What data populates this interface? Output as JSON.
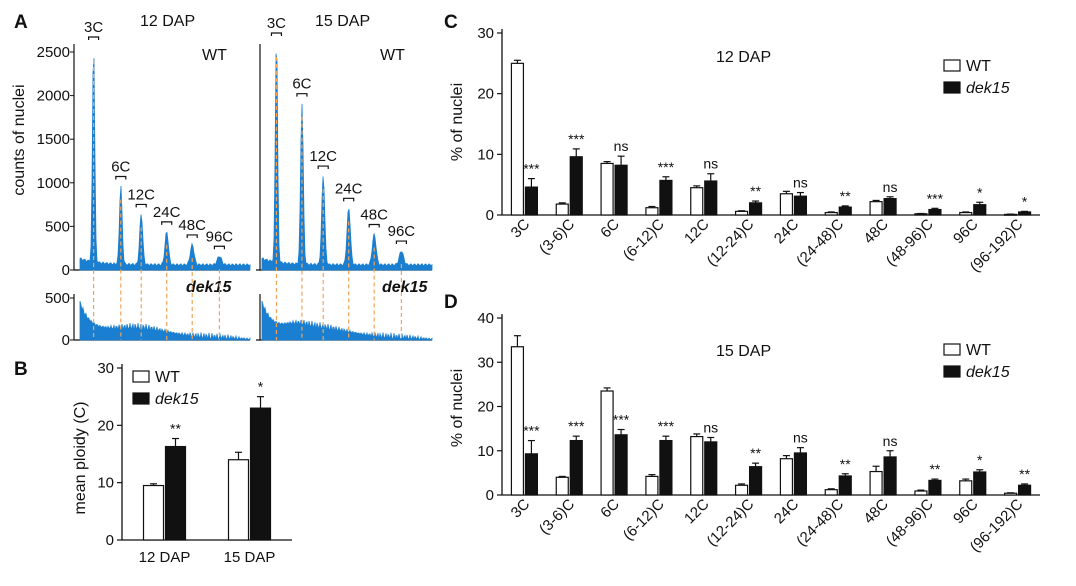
{
  "colors": {
    "wt_fill": "#ffffff",
    "dek_fill": "#111111",
    "histogram": "#1a7fd0",
    "guide": "#f0a35a",
    "axis": "#111111"
  },
  "chart_data": [
    {
      "id": "A",
      "panel_label": "A",
      "type": "area",
      "ylabel": "counts of nuclei",
      "ylim_top": [
        0,
        2500
      ],
      "yticks_top": [
        "0",
        "500",
        "1000",
        "1500",
        "2000",
        "2500"
      ],
      "ylim_bottom": [
        0,
        500
      ],
      "yticks_bottom": [
        "0",
        "500"
      ],
      "panels": [
        {
          "title": "12 DAP",
          "genotype_top": "WT",
          "genotype_bottom": "dek15",
          "peaks_wt": [
            {
              "label": "3C",
              "value": 2500
            },
            {
              "label": "6C",
              "value": 900
            },
            {
              "label": "12C",
              "value": 580
            },
            {
              "label": "24C",
              "value": 380
            },
            {
              "label": "48C",
              "value": 230
            },
            {
              "label": "96C",
              "value": 100
            }
          ]
        },
        {
          "title": "15 DAP",
          "genotype_top": "WT",
          "genotype_bottom": "dek15",
          "peaks_wt": [
            {
              "label": "3C",
              "value": 2600
            },
            {
              "label": "6C",
              "value": 1850
            },
            {
              "label": "12C",
              "value": 1020
            },
            {
              "label": "24C",
              "value": 650
            },
            {
              "label": "48C",
              "value": 350
            },
            {
              "label": "96C",
              "value": 160
            }
          ]
        }
      ]
    },
    {
      "id": "B",
      "panel_label": "B",
      "type": "bar",
      "ylabel": "mean ploidy  (C)",
      "ylim": [
        0,
        30
      ],
      "yticks": [
        "0",
        "10",
        "20",
        "30"
      ],
      "categories": [
        "12 DAP",
        "15 DAP"
      ],
      "series": [
        {
          "name": "WT",
          "values": [
            9.5,
            14
          ],
          "errors": [
            0.3,
            1.3
          ]
        },
        {
          "name": "dek15",
          "values": [
            16.3,
            23
          ],
          "errors": [
            1.4,
            2.0
          ]
        }
      ],
      "significance": [
        "**",
        "*"
      ]
    },
    {
      "id": "C",
      "panel_label": "C",
      "type": "bar",
      "title": "12 DAP",
      "ylabel": "% of nuclei",
      "ylim": [
        0,
        30
      ],
      "yticks": [
        "0",
        "10",
        "20",
        "30"
      ],
      "categories": [
        "3C",
        "(3-6)C",
        "6C",
        "(6-12)C",
        "12C",
        "(12-24)C",
        "24C",
        "(24-48)C",
        "48C",
        "(48-96)C",
        "96C",
        "(96-192)C"
      ],
      "series": [
        {
          "name": "WT",
          "values": [
            25,
            1.8,
            8.5,
            1.2,
            4.5,
            0.6,
            3.5,
            0.4,
            2.2,
            0.2,
            0.4,
            0.1
          ],
          "errors": [
            0.5,
            0.2,
            0.3,
            0.2,
            0.3,
            0.1,
            0.4,
            0.1,
            0.2,
            0.05,
            0.1,
            0.05
          ]
        },
        {
          "name": "dek15",
          "values": [
            4.6,
            9.6,
            8.2,
            5.7,
            5.6,
            2.0,
            3.1,
            1.3,
            2.7,
            0.9,
            1.7,
            0.5
          ],
          "errors": [
            1.4,
            1.3,
            1.5,
            0.6,
            1.2,
            0.3,
            0.6,
            0.2,
            0.3,
            0.2,
            0.4,
            0.1
          ]
        }
      ],
      "significance": [
        "***",
        "***",
        "ns",
        "***",
        "ns",
        "**",
        "ns",
        "**",
        "ns",
        "***",
        "*",
        "*"
      ]
    },
    {
      "id": "D",
      "panel_label": "D",
      "type": "bar",
      "title": "15 DAP",
      "ylabel": "% of nuclei",
      "ylim": [
        0,
        40
      ],
      "yticks": [
        "0",
        "10",
        "20",
        "30",
        "40"
      ],
      "categories": [
        "3C",
        "(3-6)C",
        "6C",
        "(6-12)C",
        "12C",
        "(12-24)C",
        "24C",
        "(24-48)C",
        "48C",
        "(48-96)C",
        "96C",
        "(96-192)C"
      ],
      "series": [
        {
          "name": "WT",
          "values": [
            33.5,
            4,
            23.5,
            4.2,
            13.2,
            2.2,
            8.2,
            1.2,
            5.3,
            0.9,
            3.2,
            0.4
          ],
          "errors": [
            2.5,
            0.2,
            0.7,
            0.4,
            0.6,
            0.3,
            0.7,
            0.2,
            1.2,
            0.2,
            0.4,
            0.1
          ]
        },
        {
          "name": "dek15",
          "values": [
            9.3,
            12.3,
            13.6,
            12.3,
            12,
            6.4,
            9.5,
            4.3,
            8.6,
            3.3,
            5.2,
            2.2
          ],
          "errors": [
            3,
            1,
            1.2,
            1,
            1,
            0.8,
            1.2,
            0.5,
            1.4,
            0.3,
            0.5,
            0.3
          ]
        }
      ],
      "significance": [
        "***",
        "***",
        "***",
        "***",
        "ns",
        "**",
        "ns",
        "**",
        "ns",
        "**",
        "*",
        "**"
      ]
    }
  ]
}
